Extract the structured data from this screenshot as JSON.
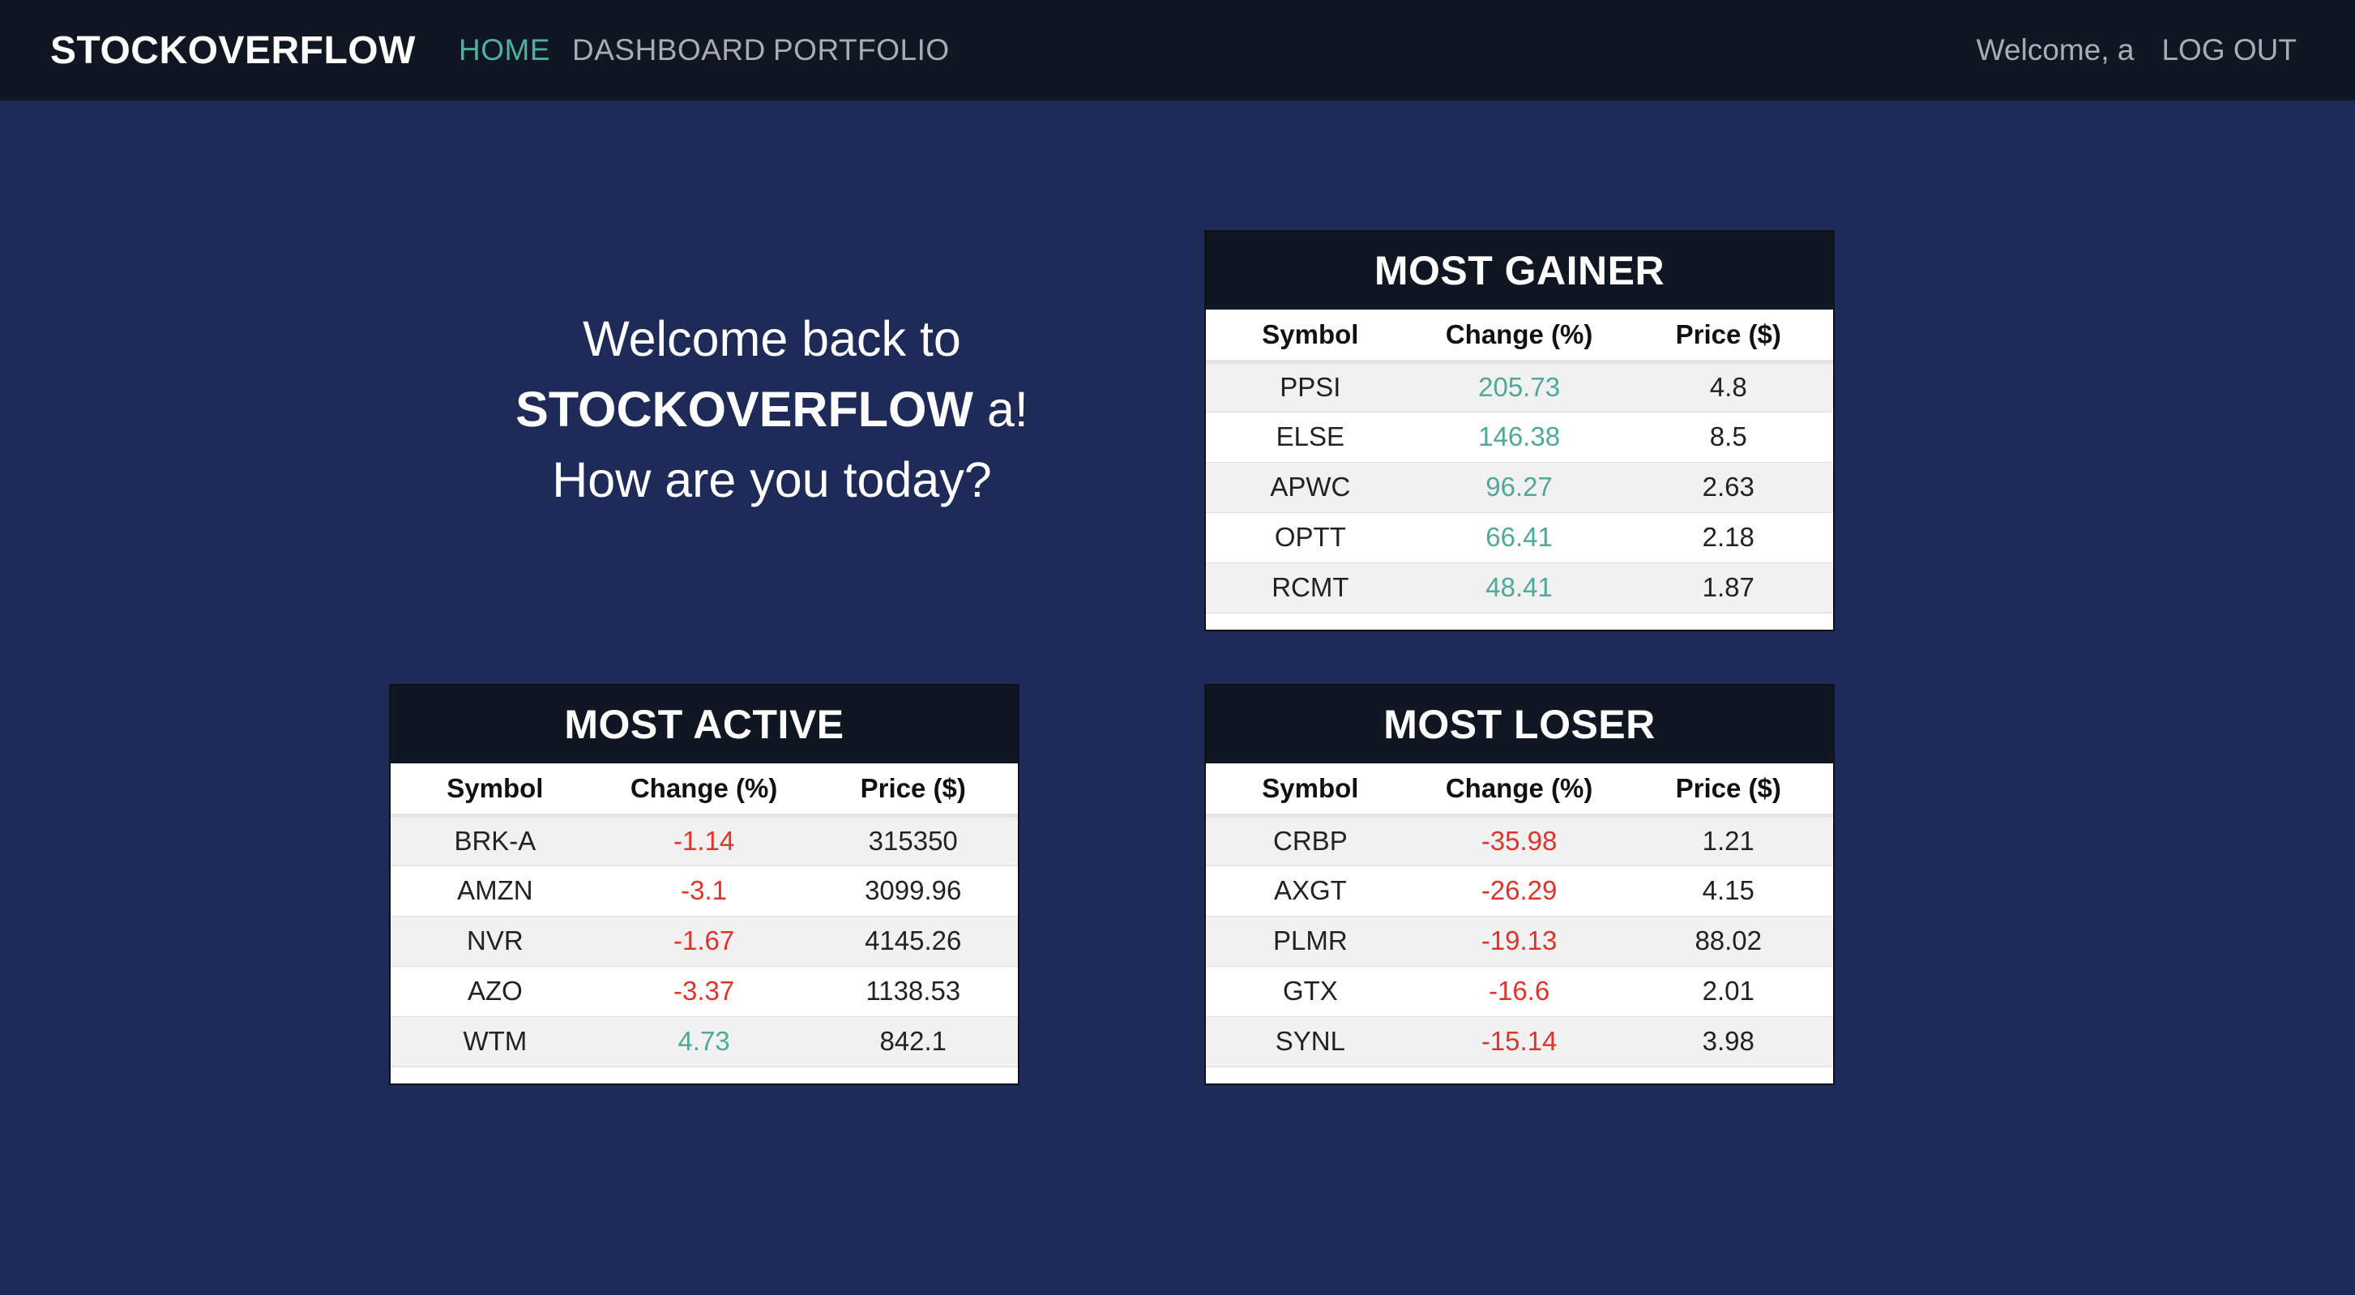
{
  "nav": {
    "brand": "STOCKOVERFLOW",
    "links": [
      "HOME",
      "DASHBOARD",
      "PORTFOLIO"
    ],
    "welcome_user": "Welcome, a",
    "logout": "LOG OUT",
    "active_color": "#4fb0a0"
  },
  "hero": {
    "line1": "Welcome back to",
    "brand": "STOCKOVERFLOW",
    "user_suffix": " a!",
    "line3": "How are you today?"
  },
  "columns": [
    "Symbol",
    "Change (%)",
    "Price ($)"
  ],
  "colors": {
    "positive": "#4fa898",
    "negative": "#e0342b",
    "background": "#1e2a58"
  },
  "gainer": {
    "title": "MOST GAINER",
    "rows": [
      {
        "symbol": "PPSI",
        "change": "205.73",
        "price": "4.8"
      },
      {
        "symbol": "ELSE",
        "change": "146.38",
        "price": "8.5"
      },
      {
        "symbol": "APWC",
        "change": "96.27",
        "price": "2.63"
      },
      {
        "symbol": "OPTT",
        "change": "66.41",
        "price": "2.18"
      },
      {
        "symbol": "RCMT",
        "change": "48.41",
        "price": "1.87"
      }
    ]
  },
  "active": {
    "title": "MOST ACTIVE",
    "rows": [
      {
        "symbol": "BRK-A",
        "change": "-1.14",
        "price": "315350"
      },
      {
        "symbol": "AMZN",
        "change": "-3.1",
        "price": "3099.96"
      },
      {
        "symbol": "NVR",
        "change": "-1.67",
        "price": "4145.26"
      },
      {
        "symbol": "AZO",
        "change": "-3.37",
        "price": "1138.53"
      },
      {
        "symbol": "WTM",
        "change": "4.73",
        "price": "842.1"
      }
    ]
  },
  "loser": {
    "title": "MOST LOSER",
    "rows": [
      {
        "symbol": "CRBP",
        "change": "-35.98",
        "price": "1.21"
      },
      {
        "symbol": "AXGT",
        "change": "-26.29",
        "price": "4.15"
      },
      {
        "symbol": "PLMR",
        "change": "-19.13",
        "price": "88.02"
      },
      {
        "symbol": "GTX",
        "change": "-16.6",
        "price": "2.01"
      },
      {
        "symbol": "SYNL",
        "change": "-15.14",
        "price": "3.98"
      }
    ]
  }
}
